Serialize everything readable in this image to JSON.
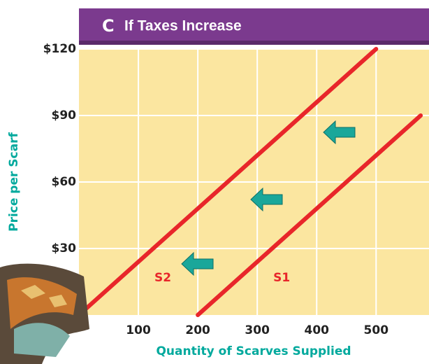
{
  "chart_data": {
    "type": "line",
    "panel_letter": "C",
    "title": "If Taxes Increase",
    "x_label": "Quantity of Scarves Supplied",
    "y_label": "Price per Scarf",
    "xlim": [
      0,
      589
    ],
    "ylim": [
      0,
      120
    ],
    "xticks": [
      100,
      200,
      300,
      400,
      500
    ],
    "yticks": [
      {
        "value": 30,
        "label": "$30"
      },
      {
        "value": 60,
        "label": "$60"
      },
      {
        "value": 90,
        "label": "$90"
      },
      {
        "value": 120,
        "label": "$120"
      }
    ],
    "grid": true,
    "series": [
      {
        "name": "S2",
        "color": "#e8262a",
        "x": [
          0,
          500
        ],
        "values": [
          0,
          120
        ]
      },
      {
        "name": "S1",
        "color": "#e8262a",
        "x": [
          200,
          575
        ],
        "values": [
          0,
          90
        ]
      }
    ]
  }
}
